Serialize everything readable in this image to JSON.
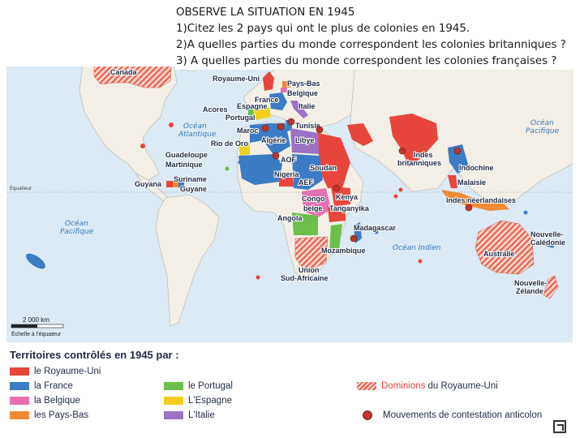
{
  "questions": {
    "line1": "OBSERVE LA SITUATION EN 1945",
    "line2": "1)Citez les 2 pays qui ont le plus de colonies en 1945.",
    "line3": "2)A quelles parties du monde correspondent les colonies britanniques ?",
    "line4": "3) A quelles parties du monde correspondent les colonies françaises ?"
  },
  "oceans": {
    "atlantic": [
      "Océan",
      "Atlantique"
    ],
    "pacific_east": [
      "Océan",
      "Pacifique"
    ],
    "pacific_west": [
      "Océan",
      "Pacifique"
    ],
    "indian": "Océan Indien"
  },
  "equator_label": "Équateur",
  "scale": {
    "distance": "2 000 km",
    "note": "Échelle à l'équateur"
  },
  "places": {
    "canada": "Canada",
    "royaume_uni": "Royaume-Uni",
    "pays_bas": "Pays-Bas",
    "belgique": "Belgique",
    "france": "France",
    "italie": "Italie",
    "acores": "Acores",
    "espagne": "Espagne",
    "portugal": "Portugal",
    "tunisie": "Tunisie",
    "maroc": "Maroc",
    "rio_de_oro": "Rio de Oro",
    "algerie": "Algérie",
    "libye": "Libye",
    "guadeloupe": "Guadeloupe",
    "martinique": "Martinique",
    "aof": "AOF",
    "nigeria": "Nigeria",
    "soudan": "Soudan",
    "aef": "AEF",
    "suriname": "Suriname",
    "guyana": "Guyana",
    "guyane": "Guyane",
    "congo": "Congo",
    "belge": "belge",
    "kenya": "Kenya",
    "tanganyika": "Tanganyika",
    "angola": "Angola",
    "madagascar": "Madagascar",
    "mozambique": "Mozambique",
    "union_sa": [
      "Union",
      "Sud-Africaine"
    ],
    "indes_britanniques": [
      "Indes",
      "britanniques"
    ],
    "indochine": "Indochine",
    "malaisie": "Malaisie",
    "indes_neerlandaises": "Indes néerlandaises",
    "australie": "Australie",
    "nouvelle_caledonie": [
      "Nouvelle-",
      "Calédonie"
    ],
    "nouvelle_zelande": [
      "Nouvelle-",
      "Zélande"
    ]
  },
  "legend": {
    "title": "Territoires contrôlés en 1945 par :",
    "items": [
      {
        "label": "le Royaume-Uni",
        "color": "#e8463c"
      },
      {
        "label": "la France",
        "color": "#3b7cc4"
      },
      {
        "label": "la Belgique",
        "color": "#e86fb3"
      },
      {
        "label": "les Pays-Bas",
        "color": "#f08a34"
      },
      {
        "label": "le Portugal",
        "color": "#6cbf4a"
      },
      {
        "label": "L'Espagne",
        "color": "#f2cf1c"
      },
      {
        "label": "L'Italie",
        "color": "#9b72c4"
      }
    ],
    "dominions_prefix": "Dominions",
    "dominions_suffix": " du Royaume-Uni",
    "movements": "Mouvements de contestation anticolon"
  }
}
